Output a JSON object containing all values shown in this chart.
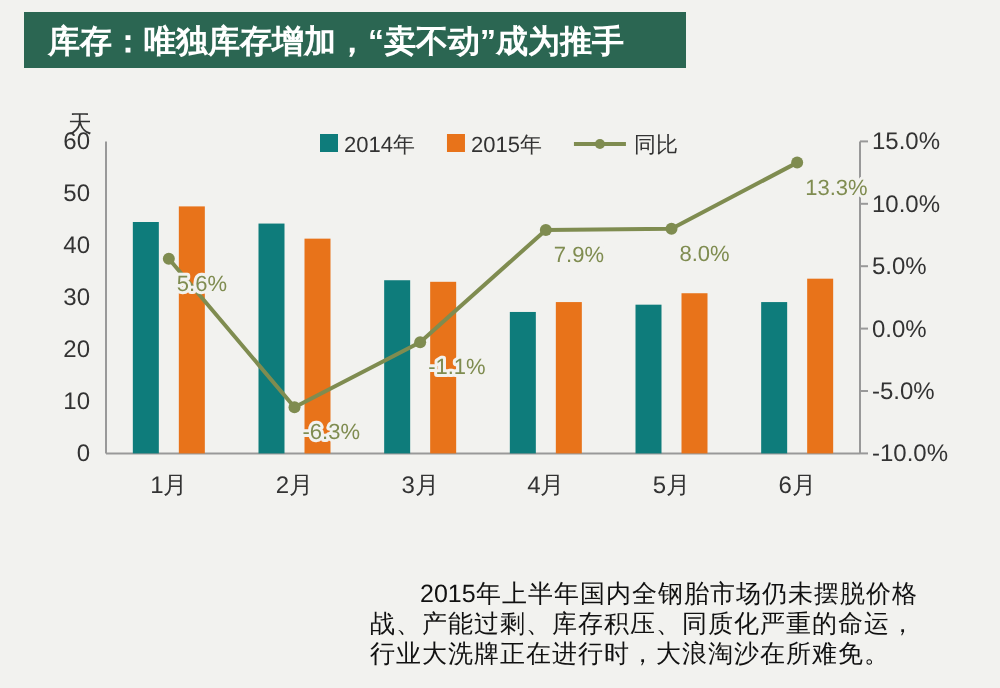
{
  "chart_data": {
    "type": "bar",
    "title": "库存：唯独库存增加，“卖不动”成为推手",
    "ylabel": "天",
    "categories": [
      "1月",
      "2月",
      "3月",
      "4月",
      "5月",
      "6月"
    ],
    "series": [
      {
        "name": "2014年",
        "color": "#0e7c7b",
        "values": [
          44.5,
          44.2,
          33.3,
          27.2,
          28.6,
          29.1
        ]
      },
      {
        "name": "2015年",
        "color": "#e8731a",
        "values": [
          47.5,
          41.3,
          33.0,
          29.1,
          30.8,
          33.6
        ]
      },
      {
        "name": "同比",
        "type": "line",
        "axis": "y2",
        "color": "#7f8c50",
        "marker": "circle",
        "values": [
          5.6,
          -6.3,
          -1.1,
          7.9,
          8.0,
          13.3
        ],
        "value_labels": [
          "5.6%",
          "-6.3%",
          "-1.1%",
          "7.9%",
          "8.0%",
          "13.3%"
        ]
      }
    ],
    "ylim": [
      0,
      60
    ],
    "yticks": [
      0,
      10,
      20,
      30,
      40,
      50,
      60
    ],
    "y2lim": [
      -10,
      15
    ],
    "y2ticks": [
      {
        "value": -10,
        "label": "-10.0%"
      },
      {
        "value": -5,
        "label": "-5.0%"
      },
      {
        "value": 0,
        "label": "0.0%"
      },
      {
        "value": 5,
        "label": "5.0%"
      },
      {
        "value": 10,
        "label": "10.0%"
      },
      {
        "value": 15,
        "label": "15.0%"
      }
    ],
    "legend": "top",
    "grid": false,
    "annotations": [
      "2015年上半年国内全钢胎市场仍未摆脱价格战、产能过剩、库存积压、同质化严重的命运，行业大洗牌正在进行时，大浪淘沙在所难免。"
    ]
  }
}
